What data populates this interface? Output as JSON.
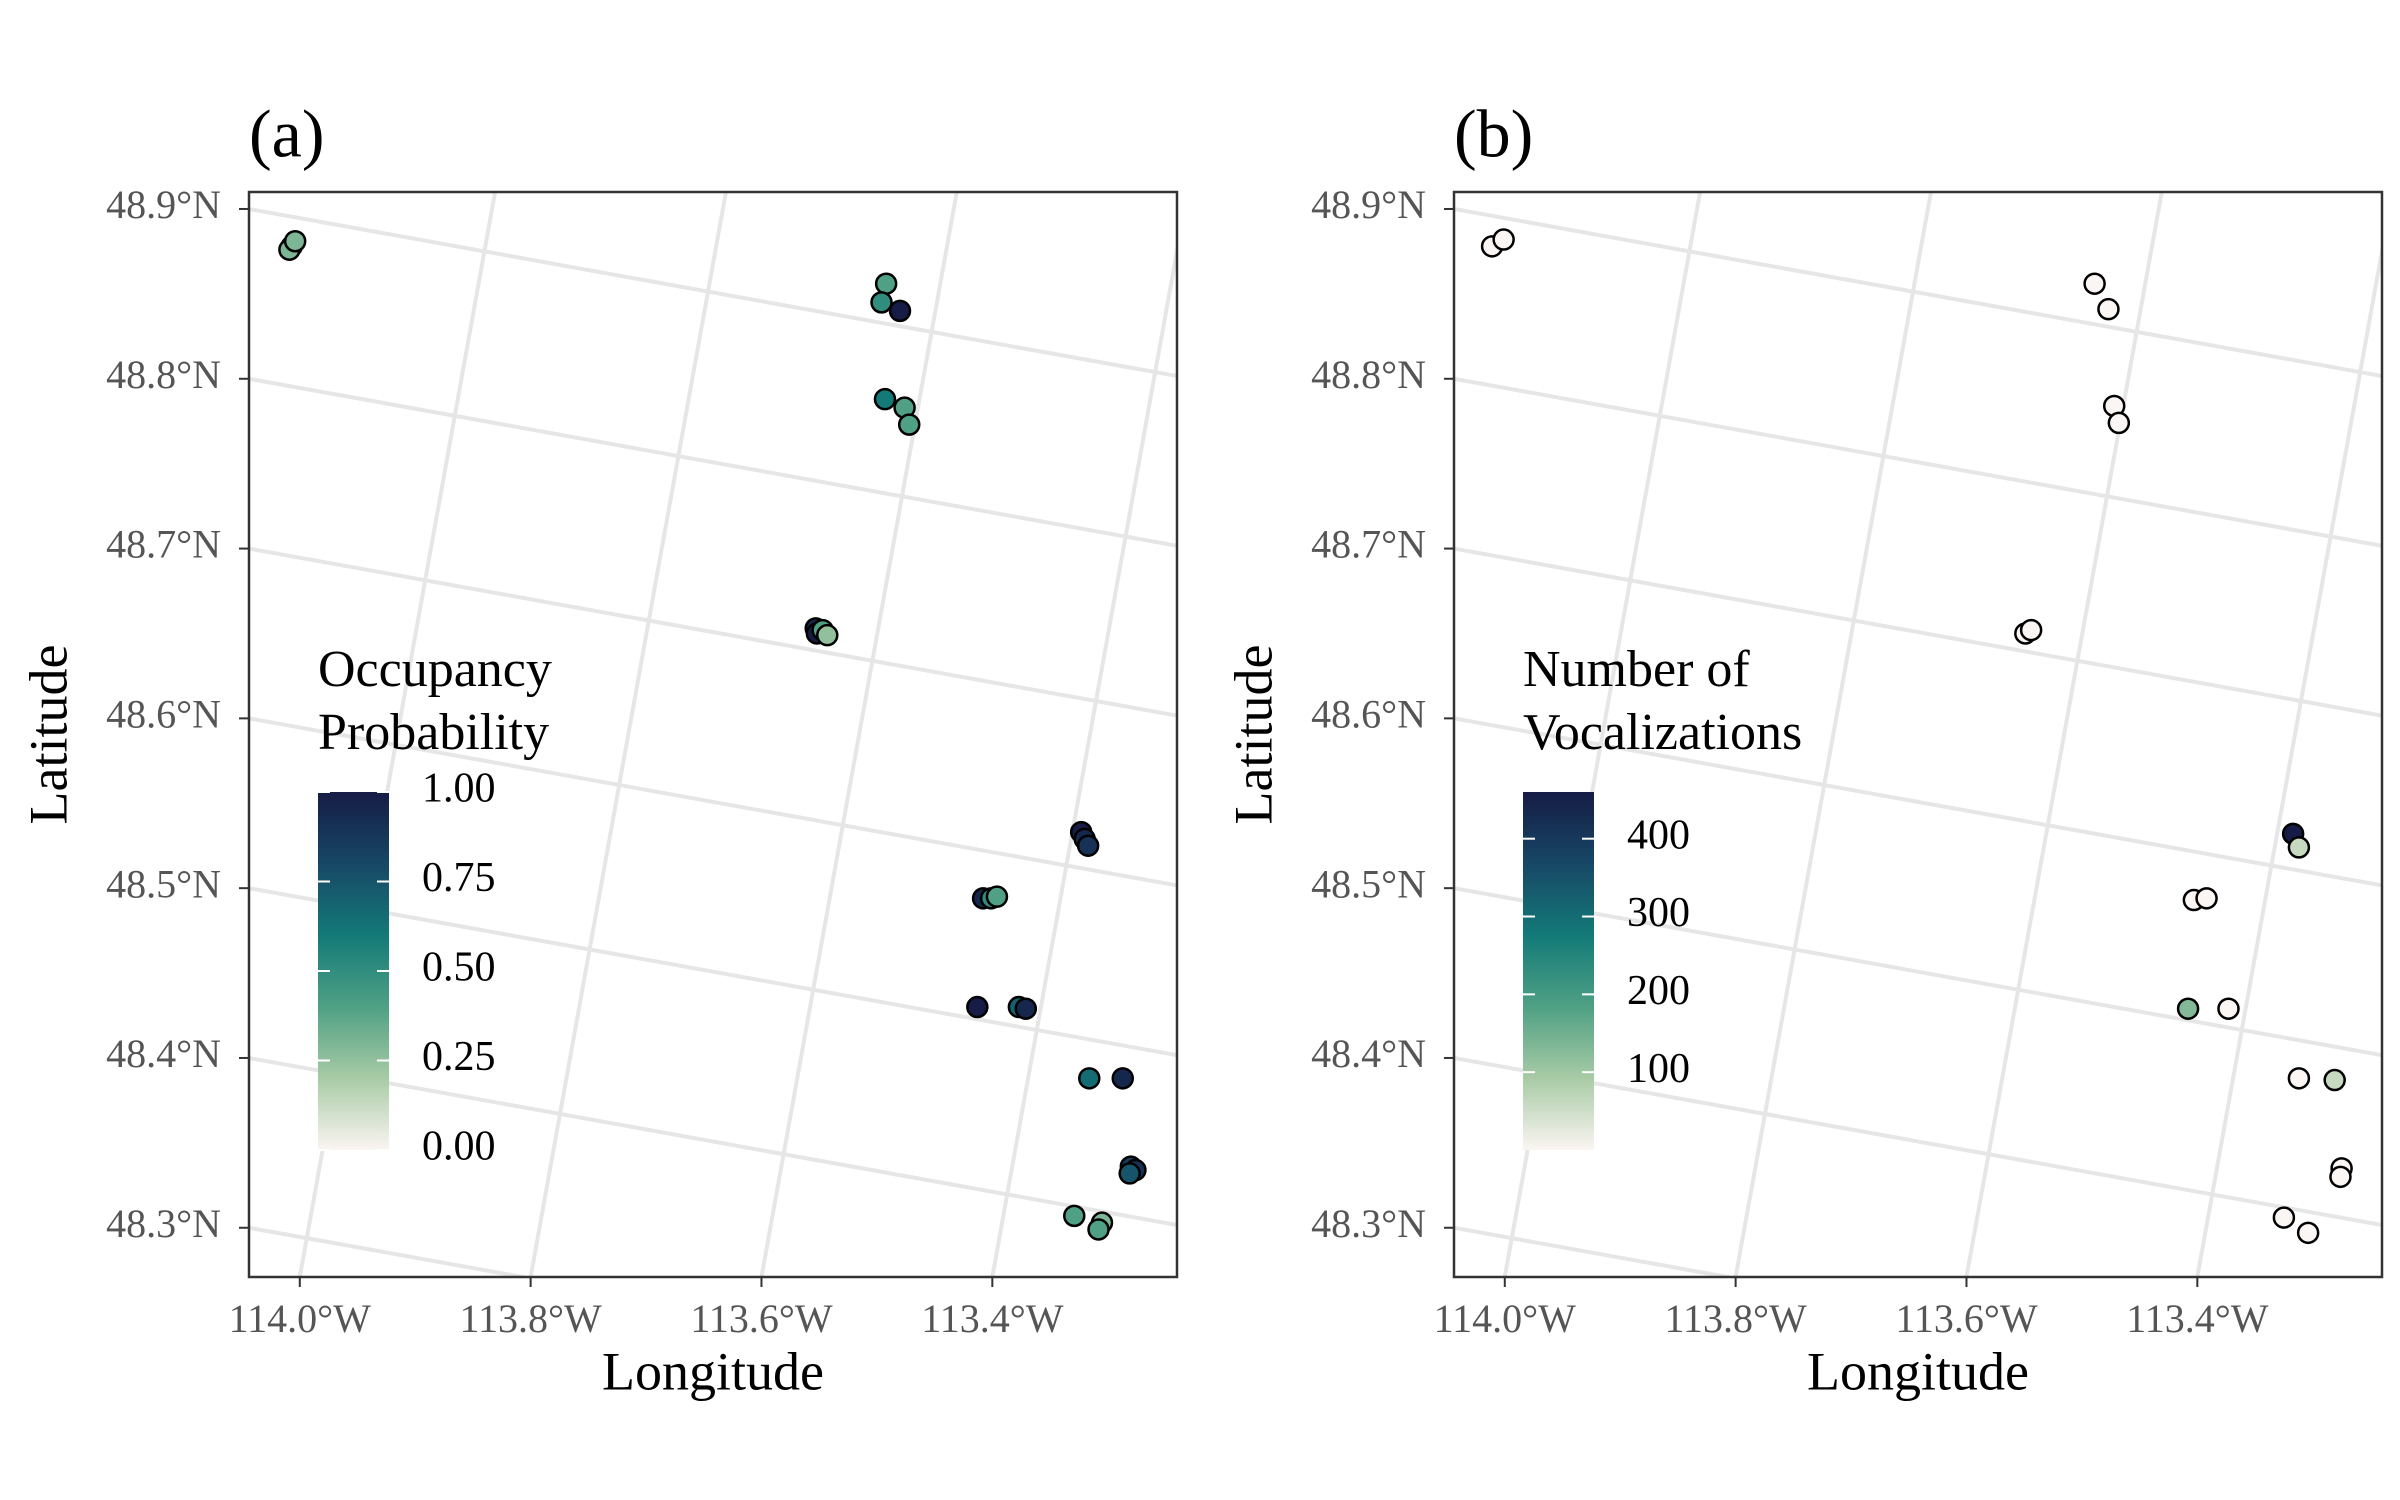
{
  "chart_data": [
    {
      "type": "scatter",
      "title": "(a)",
      "xlabel": "Longitude",
      "ylabel": "Latitude",
      "xlim": [
        -114.044,
        -113.24
      ],
      "ylim": [
        48.271,
        48.91
      ],
      "xticks": [
        {
          "value": -114.0,
          "label": "114.0°W"
        },
        {
          "value": -113.8,
          "label": "113.8°W"
        },
        {
          "value": -113.6,
          "label": "113.6°W"
        },
        {
          "value": -113.4,
          "label": "113.4°W"
        }
      ],
      "yticks": [
        {
          "value": 48.3,
          "label": "48.3°N"
        },
        {
          "value": 48.4,
          "label": "48.4°N"
        },
        {
          "value": 48.5,
          "label": "48.5°N"
        },
        {
          "value": 48.6,
          "label": "48.6°N"
        },
        {
          "value": 48.7,
          "label": "48.7°N"
        },
        {
          "value": 48.8,
          "label": "48.8°N"
        },
        {
          "value": 48.9,
          "label": "48.9°N"
        }
      ],
      "grid": true,
      "legend_title": [
        "Occupancy",
        "Probability"
      ],
      "colormap": [
        "#fbf5f3",
        "#a8cba5",
        "#4fa084",
        "#137a78",
        "#174766",
        "#161c45"
      ],
      "clim": [
        0,
        1
      ],
      "cticks": [
        {
          "value": 0,
          "label": "0.00"
        },
        {
          "value": 0.25,
          "label": "0.25"
        },
        {
          "value": 0.5,
          "label": "0.50"
        },
        {
          "value": 0.75,
          "label": "0.75"
        },
        {
          "value": 1,
          "label": "1.00"
        }
      ],
      "x": [
        -114.007,
        -114.009,
        -114.004,
        -113.492,
        -113.496,
        -113.48,
        -113.493,
        -113.476,
        -113.472,
        -113.553,
        -113.552,
        -113.547,
        -113.543,
        -113.323,
        -113.32,
        -113.317,
        -113.408,
        -113.401,
        -113.396,
        -113.413,
        -113.377,
        -113.371,
        -113.316,
        -113.287,
        -113.28,
        -113.276,
        -113.281,
        -113.329,
        -113.305,
        -113.308
      ],
      "y": [
        48.878,
        48.876,
        48.881,
        48.856,
        48.845,
        48.84,
        48.788,
        48.783,
        48.773,
        48.653,
        48.65,
        48.652,
        48.649,
        48.533,
        48.529,
        48.525,
        48.494,
        48.494,
        48.495,
        48.43,
        48.43,
        48.429,
        48.388,
        48.388,
        48.336,
        48.334,
        48.332,
        48.307,
        48.303,
        48.299
      ],
      "values": [
        0.3,
        0.3,
        0.3,
        0.4,
        0.5,
        1.0,
        0.6,
        0.4,
        0.4,
        0.95,
        1.0,
        0.4,
        0.25,
        1.0,
        0.95,
        0.9,
        0.95,
        0.5,
        0.4,
        1.0,
        0.7,
        0.95,
        0.65,
        0.95,
        0.85,
        0.9,
        0.75,
        0.4,
        0.3,
        0.4
      ]
    },
    {
      "type": "scatter",
      "title": "(b)",
      "xlabel": "Longitude",
      "ylabel": "Latitude",
      "xlim": [
        -114.044,
        -113.24
      ],
      "ylim": [
        48.271,
        48.91
      ],
      "xticks": [
        {
          "value": -114.0,
          "label": "114.0°W"
        },
        {
          "value": -113.8,
          "label": "113.8°W"
        },
        {
          "value": -113.6,
          "label": "113.6°W"
        },
        {
          "value": -113.4,
          "label": "113.4°W"
        }
      ],
      "yticks": [
        {
          "value": 48.3,
          "label": "48.3°N"
        },
        {
          "value": 48.4,
          "label": "48.4°N"
        },
        {
          "value": 48.5,
          "label": "48.5°N"
        },
        {
          "value": 48.6,
          "label": "48.6°N"
        },
        {
          "value": 48.7,
          "label": "48.7°N"
        },
        {
          "value": 48.8,
          "label": "48.8°N"
        },
        {
          "value": 48.9,
          "label": "48.9°N"
        }
      ],
      "grid": true,
      "legend_title": [
        "Number of",
        "Vocalizations"
      ],
      "colormap": [
        "#fbf5f3",
        "#a8cba5",
        "#4fa084",
        "#137a78",
        "#174766",
        "#161c45"
      ],
      "clim": [
        0,
        460
      ],
      "cticks": [
        100,
        200,
        300,
        400
      ],
      "x": [
        -114.011,
        -114.001,
        -113.489,
        -113.477,
        -113.472,
        -113.468,
        -113.549,
        -113.544,
        -113.317,
        -113.312,
        -113.403,
        -113.392,
        -113.408,
        -113.373,
        -113.312,
        -113.281,
        -113.275,
        -113.276,
        -113.325,
        -113.304
      ],
      "y": [
        48.878,
        48.882,
        48.856,
        48.841,
        48.784,
        48.774,
        48.65,
        48.652,
        48.532,
        48.524,
        48.493,
        48.494,
        48.429,
        48.429,
        48.388,
        48.387,
        48.335,
        48.33,
        48.306,
        48.297
      ],
      "values": [
        0,
        0,
        0,
        0,
        0,
        0,
        0,
        0,
        460,
        60,
        0,
        0,
        130,
        0,
        0,
        60,
        0,
        0,
        0,
        0
      ]
    }
  ]
}
